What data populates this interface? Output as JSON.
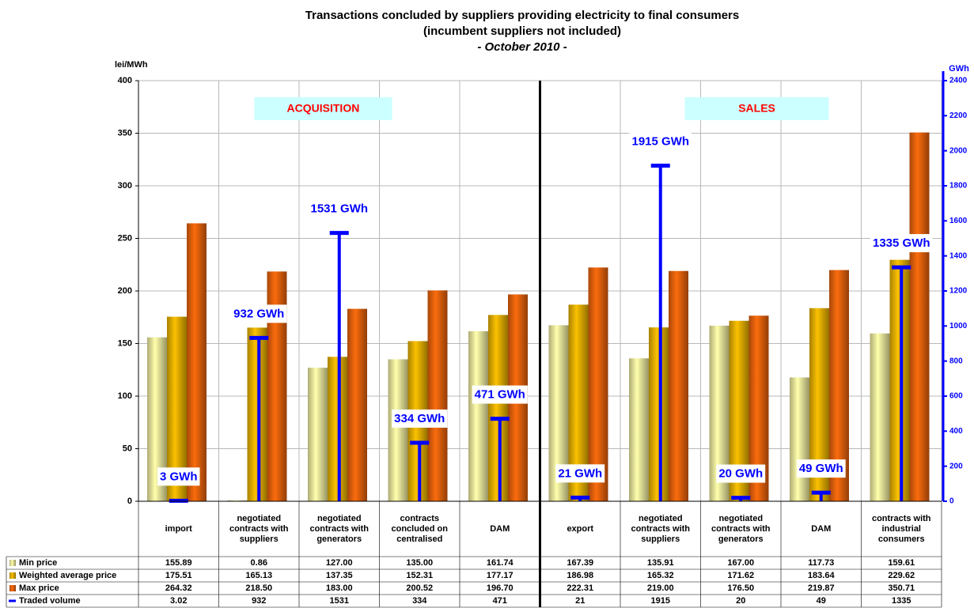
{
  "chart_data": {
    "type": "bar",
    "title": "Transactions concluded by suppliers providing electricity to final consumers",
    "subtitle": "(incumbent suppliers not included)",
    "period": "- October 2010 -",
    "y_label": "lei/MWh",
    "y2_label": "GWh",
    "annotations": [
      "ACQUISITION",
      "SALES"
    ],
    "categories": [
      "import",
      "negotiated contracts with suppliers",
      "negotiated contracts with generators",
      "contracts concluded on centralised",
      "DAM",
      "export",
      "negotiated contracts with suppliers",
      "negotiated contracts with generators",
      "DAM",
      "contracts with industrial consumers"
    ],
    "series": [
      {
        "name": "Min price",
        "color": "#e8e49a",
        "values": [
          155.89,
          0.86,
          127,
          135,
          161.74,
          167.39,
          135.91,
          167,
          117.73,
          159.61
        ],
        "value_labels": [
          "155.89",
          "0.86",
          "127.00",
          "135.00",
          "161.74",
          "167.39",
          "135.91",
          "167.00",
          "117.73",
          "159.61"
        ]
      },
      {
        "name": "Weighted average price",
        "color": "#e0ac00",
        "values": [
          175.51,
          165.13,
          137.35,
          152.31,
          177.17,
          186.98,
          165.32,
          171.62,
          183.64,
          229.62
        ],
        "value_labels": [
          "175.51",
          "165.13",
          "137.35",
          "152.31",
          "177.17",
          "186.98",
          "165.32",
          "171.62",
          "183.64",
          "229.62"
        ]
      },
      {
        "name": "Max price",
        "color": "#e0600c",
        "values": [
          264.32,
          218.5,
          183,
          200.52,
          196.7,
          222.31,
          219,
          176.5,
          219.87,
          350.71
        ],
        "value_labels": [
          "264.32",
          "218.50",
          "183.00",
          "200.52",
          "196.70",
          "222.31",
          "219.00",
          "176.50",
          "219.87",
          "350.71"
        ]
      },
      {
        "name": "Traded volume",
        "color": "#0000ff",
        "axis": "y2",
        "values": [
          3.02,
          932,
          1531,
          334,
          471,
          21,
          1915,
          20,
          49,
          1335
        ],
        "value_labels": [
          "3 GWh",
          "932 GWh",
          "1531 GWh",
          "334 GWh",
          "471 GWh",
          "21 GWh",
          "1915 GWh",
          "20 GWh",
          "49 GWh",
          "1335 GWh"
        ]
      }
    ],
    "ylim": [
      0,
      400
    ],
    "yticks": [
      0,
      50,
      100,
      150,
      200,
      250,
      300,
      350,
      400
    ],
    "y2lim": [
      0,
      2400
    ],
    "y2ticks": [
      0,
      200,
      400,
      600,
      800,
      1000,
      1200,
      1400,
      1600,
      1800,
      2000,
      2200,
      2400
    ],
    "grid": true
  }
}
